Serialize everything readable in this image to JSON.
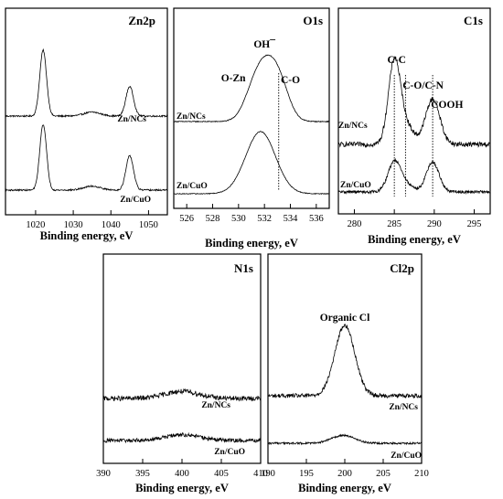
{
  "chart_data": [
    {
      "type": "line",
      "title": "Zn2p",
      "xlabel": "Binding energy, eV",
      "xlim": [
        1012,
        1055
      ],
      "ticks": [
        1020,
        1030,
        1040,
        1050
      ],
      "grid": false,
      "series": [
        {
          "name": "Zn/NCs",
          "peaks": [
            {
              "x": 1022,
              "h": 1.0,
              "w": 0.9
            },
            {
              "x": 1045,
              "h": 0.45,
              "w": 1.0
            },
            {
              "x": 1035,
              "h": 0.06,
              "w": 2.2
            }
          ],
          "noise": 0.012
        },
        {
          "name": "Zn/CuO",
          "peaks": [
            {
              "x": 1022,
              "h": 1.0,
              "w": 0.9
            },
            {
              "x": 1045,
              "h": 0.52,
              "w": 1.0
            },
            {
              "x": 1035,
              "h": 0.06,
              "w": 2.2
            }
          ],
          "noise": 0.012
        }
      ],
      "annotations": []
    },
    {
      "type": "line",
      "title": "O1s",
      "xlabel": "Binding energy, eV",
      "xlim": [
        525,
        537
      ],
      "ticks": [
        526,
        528,
        530,
        532,
        534,
        536
      ],
      "grid": false,
      "series": [
        {
          "name": "Zn/NCs",
          "peaks": [
            {
              "x": 531.2,
              "h": 0.38,
              "w": 0.8
            },
            {
              "x": 532.4,
              "h": 0.75,
              "w": 0.9
            },
            {
              "x": 533.4,
              "h": 0.22,
              "w": 0.7
            }
          ],
          "noise": 0.006
        },
        {
          "name": "Zn/CuO",
          "peaks": [
            {
              "x": 531.7,
              "h": 1.0,
              "w": 1.15
            }
          ],
          "noise": 0.006
        }
      ],
      "annotations": [
        {
          "label": "OH¯",
          "x": 532.0
        },
        {
          "label": "O-Zn",
          "x": 529.6
        },
        {
          "label": "C-O",
          "x": 534.0
        }
      ],
      "markers": [
        533.1
      ]
    },
    {
      "type": "line",
      "title": "C1s",
      "xlabel": "Binding energy, eV",
      "xlim": [
        278,
        297
      ],
      "ticks": [
        280,
        285,
        290,
        295
      ],
      "grid": false,
      "series": [
        {
          "name": "Zn/NCs",
          "peaks": [
            {
              "x": 285.0,
              "h": 1.0,
              "w": 0.75
            },
            {
              "x": 286.5,
              "h": 0.22,
              "w": 0.9
            },
            {
              "x": 289.8,
              "h": 0.55,
              "w": 0.9
            }
          ],
          "noise": 0.03
        },
        {
          "name": "Zn/CuO",
          "peaks": [
            {
              "x": 285.0,
              "h": 0.6,
              "w": 0.8
            },
            {
              "x": 286.5,
              "h": 0.14,
              "w": 0.9
            },
            {
              "x": 289.8,
              "h": 0.6,
              "w": 0.8
            }
          ],
          "noise": 0.03
        }
      ],
      "annotations": [
        {
          "label": "C-C",
          "x": 285.3
        },
        {
          "label": "C-O/C-N",
          "x": 288.6
        },
        {
          "label": "COOH",
          "x": 291.6
        }
      ],
      "markers": [
        285.0,
        286.4,
        289.8
      ]
    },
    {
      "type": "line",
      "title": "N1s",
      "xlabel": "Binding energy, eV",
      "xlim": [
        390,
        410
      ],
      "ticks": [
        390,
        395,
        400,
        405,
        410
      ],
      "grid": false,
      "series": [
        {
          "name": "Zn/NCs",
          "peaks": [
            {
              "x": 400.0,
              "h": 0.35,
              "w": 2.2
            }
          ],
          "noise": 0.12
        },
        {
          "name": "Zn/CuO",
          "peaks": [
            {
              "x": 400.0,
              "h": 0.35,
              "w": 2.2
            }
          ],
          "noise": 0.12
        }
      ],
      "annotations": []
    },
    {
      "type": "line",
      "title": "Cl2p",
      "xlabel": "Binding energy, eV",
      "xlim": [
        190,
        210
      ],
      "ticks": [
        190,
        195,
        200,
        205,
        210
      ],
      "grid": false,
      "series": [
        {
          "name": "Zn/NCs",
          "peaks": [
            {
              "x": 200.0,
              "h": 1.0,
              "w": 1.3
            }
          ],
          "noise": 0.03
        },
        {
          "name": "Zn/CuO",
          "peaks": [
            {
              "x": 199.8,
              "h": 0.33,
              "w": 1.5
            }
          ],
          "noise": 0.04
        }
      ],
      "annotations": [
        {
          "label": "Organic Cl",
          "x": 200.0
        }
      ]
    }
  ]
}
